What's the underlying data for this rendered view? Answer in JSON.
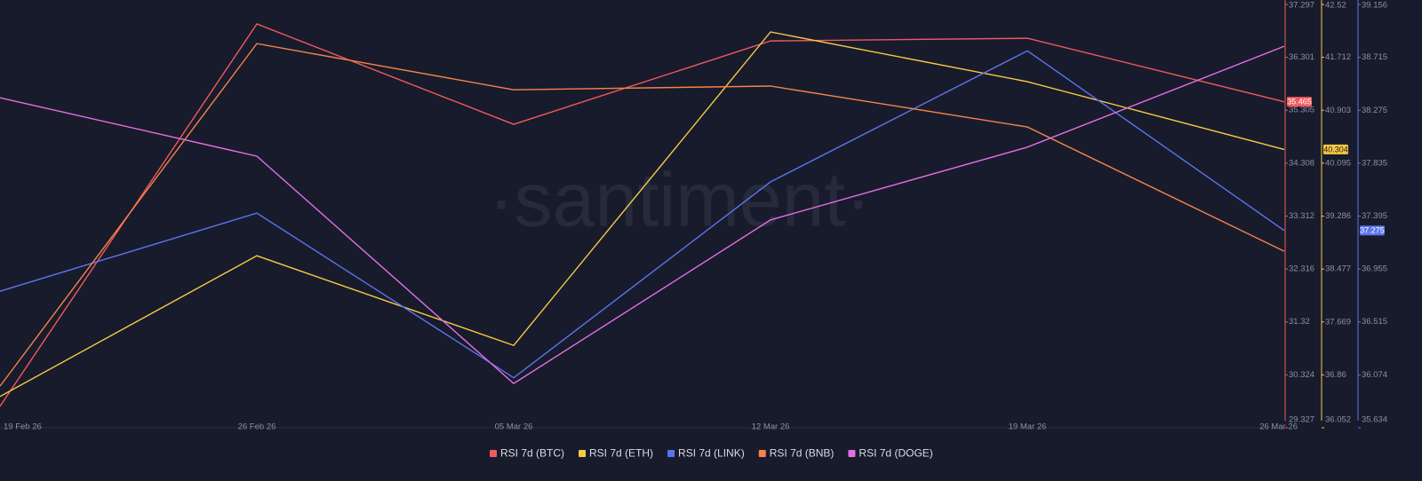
{
  "chart_data": {
    "type": "line",
    "watermark": "·santiment·",
    "categories": [
      "19 Feb 26",
      "26 Feb 26",
      "05 Mar 26",
      "12 Mar 26",
      "19 Mar 26",
      "26 Mar 26"
    ],
    "series": [
      {
        "name": "RSI 7d (BTC)",
        "color": "#f0595e",
        "axis": "y",
        "values": [
          29.73,
          36.93,
          35.04,
          36.61,
          36.66,
          35.465
        ]
      },
      {
        "name": "RSI 7d (ETH)",
        "color": "#f6c945",
        "axis": "y2",
        "values": [
          36.53,
          38.68,
          37.31,
          42.1,
          41.34,
          40.304
        ]
      },
      {
        "name": "RSI 7d (LINK)",
        "color": "#5b74ee",
        "axis": "y3",
        "values": [
          36.77,
          37.42,
          36.05,
          37.68,
          38.77,
          37.275
        ]
      },
      {
        "name": "RSI 7d (BNB)",
        "color": "#f5834b",
        "axis": "y",
        "values": [
          30.11,
          36.56,
          35.69,
          35.76,
          34.99,
          32.65
        ]
      },
      {
        "name": "RSI 7d (DOGE)",
        "color": "#e56ee5",
        "axis": "y",
        "values": [
          35.54,
          34.44,
          30.16,
          33.24,
          34.61,
          36.51
        ]
      }
    ],
    "ylim": [
      29.327,
      37.297
    ],
    "yticks": [
      29.327,
      30.324,
      31.32,
      32.316,
      33.312,
      34.308,
      35.305,
      36.301,
      37.297
    ],
    "y2lim": [
      36.052,
      42.52
    ],
    "y2ticks": [
      36.052,
      36.86,
      37.669,
      38.477,
      39.286,
      40.095,
      40.903,
      41.712,
      42.52
    ],
    "y3lim": [
      35.634,
      39.156
    ],
    "y3ticks": [
      35.634,
      36.074,
      36.515,
      36.955,
      37.395,
      37.835,
      38.275,
      38.715,
      39.156
    ]
  }
}
